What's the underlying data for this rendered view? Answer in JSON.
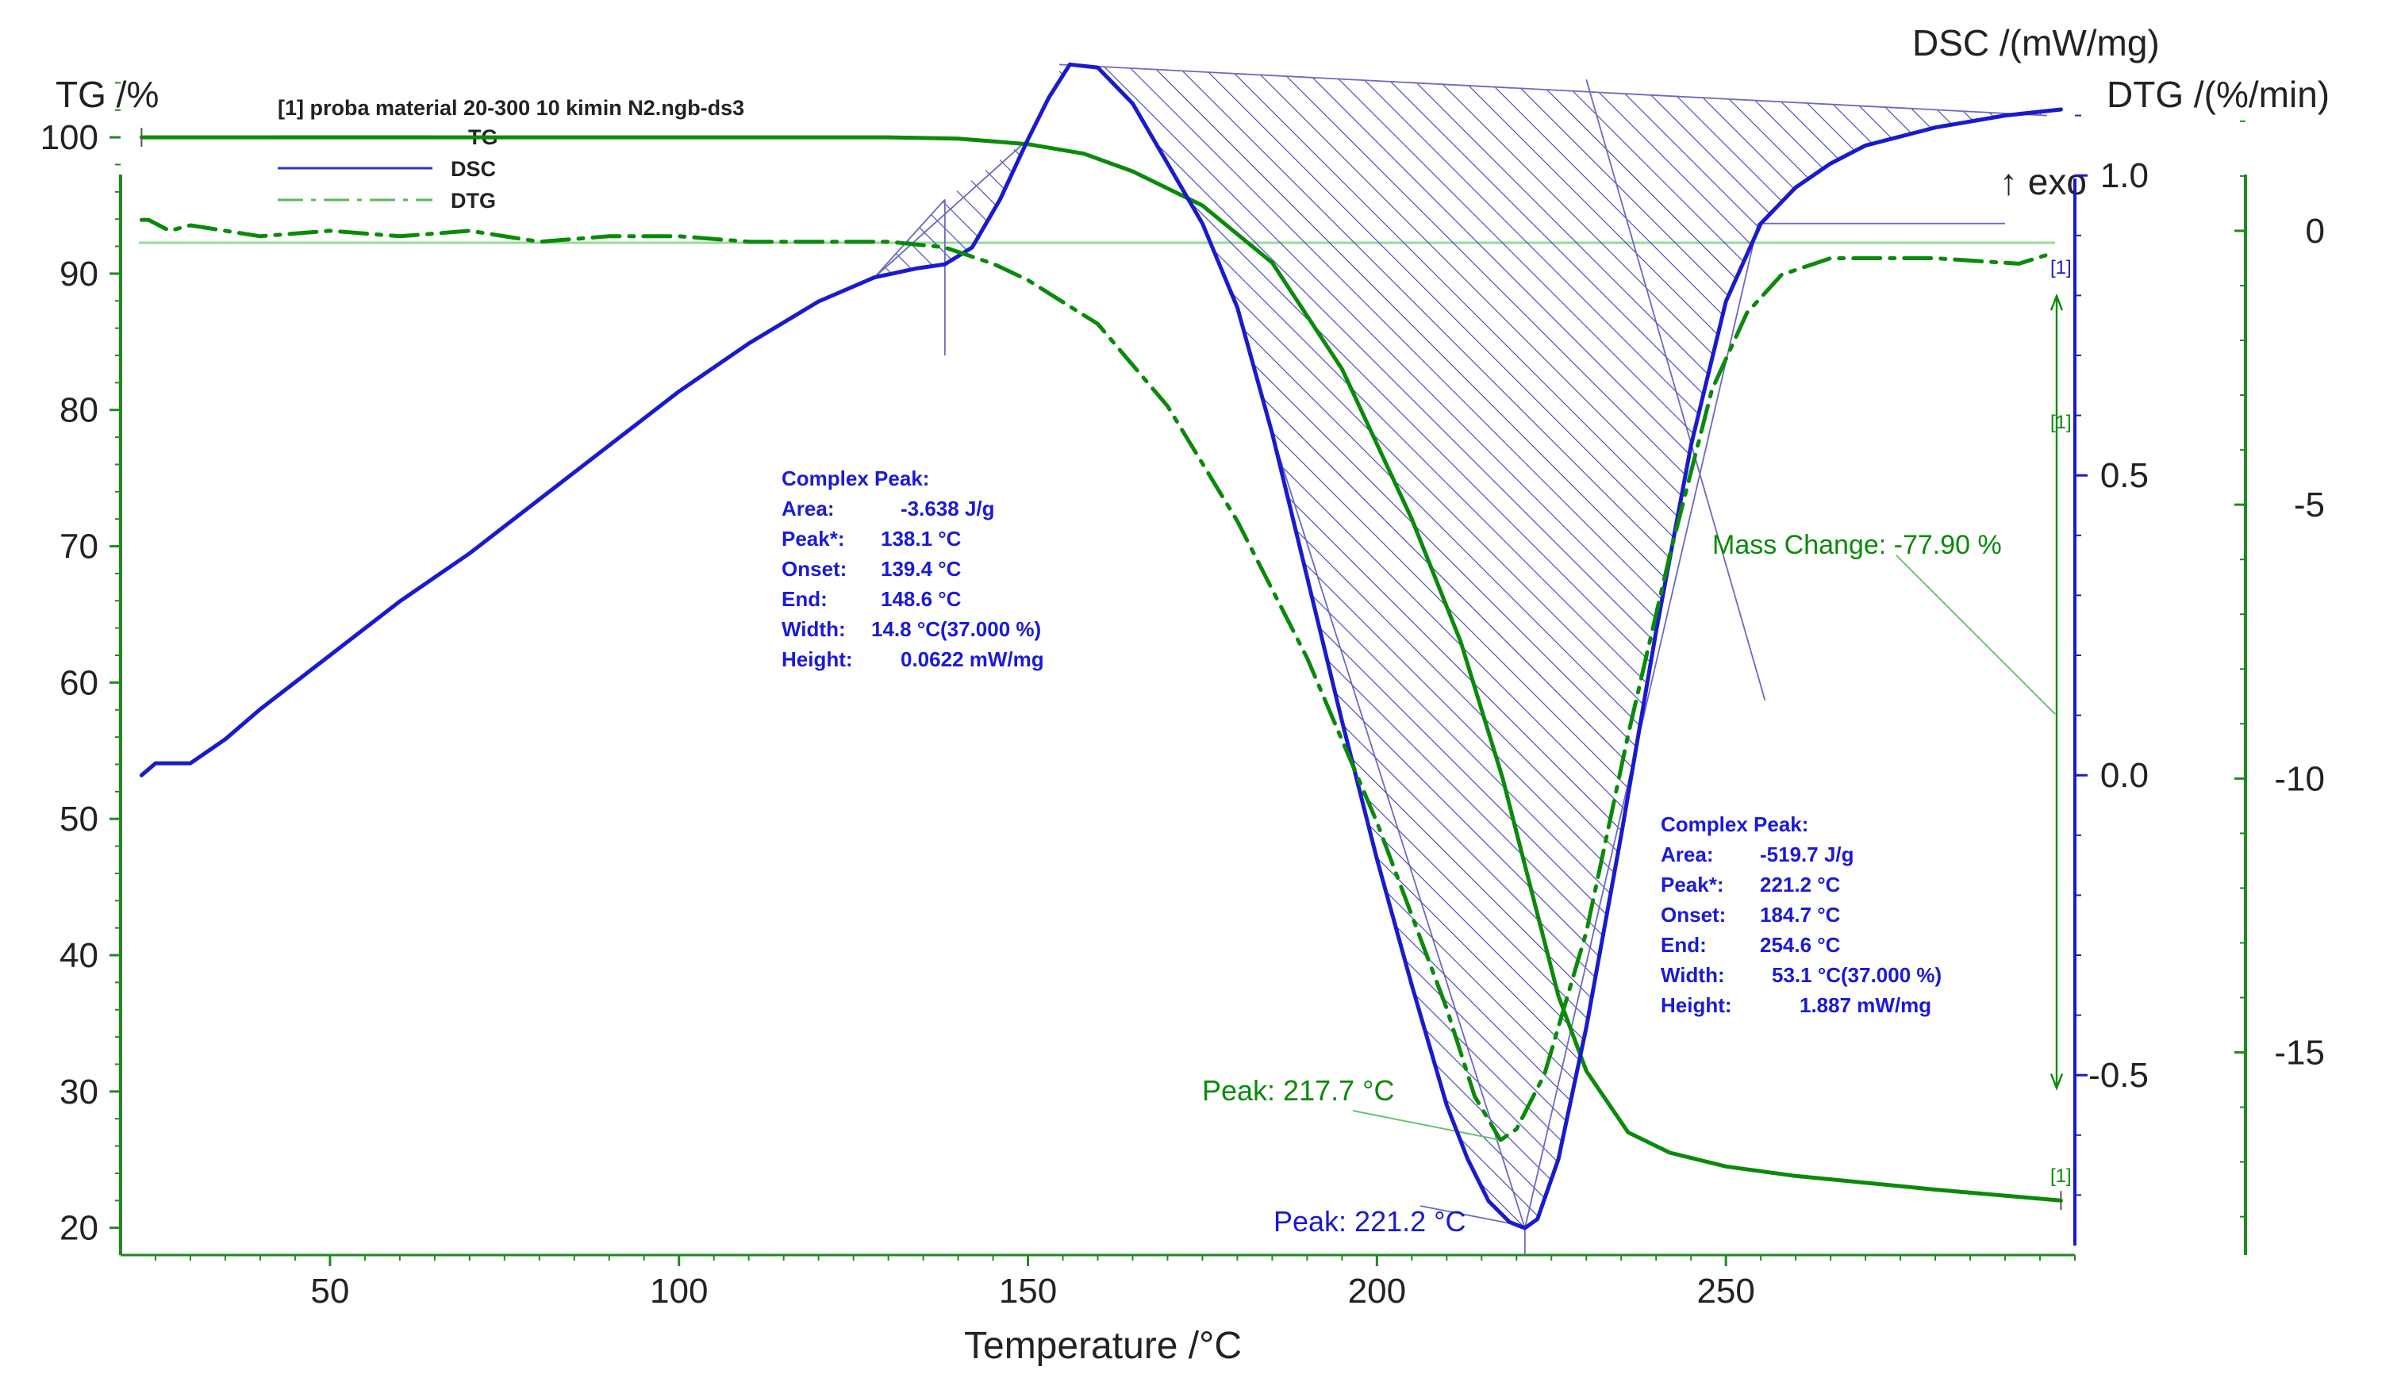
{
  "chart_data": {
    "type": "line",
    "source_file": "[1] proba material 20-300 10 kimin N2.ngb-ds3",
    "xlabel": "Temperature /°C",
    "xlim": [
      20,
      300
    ],
    "x_ticks": [
      "50",
      "100",
      "150",
      "200",
      "250"
    ],
    "axes": {
      "tg": {
        "label": "TG /%",
        "ylim": [
          18,
          106
        ],
        "ticks": [
          "20",
          "30",
          "40",
          "50",
          "60",
          "70",
          "80",
          "90",
          "100"
        ],
        "color": "#008000"
      },
      "dsc": {
        "label": "DSC /(mW/mg)",
        "exo_label": "↑ exo",
        "ylim": [
          -0.8,
          1.2
        ],
        "ticks": [
          "1.0",
          "0.5",
          "0.0",
          "-0.5"
        ],
        "color": "#1a1acd"
      },
      "dtg": {
        "label": "DTG /(%/min)",
        "ylim": [
          -18.7,
          3.2
        ],
        "ticks": [
          "0",
          "-5",
          "-10",
          "-15"
        ],
        "color": "#008000"
      }
    },
    "legend": [
      {
        "name": "TG",
        "style": "solid",
        "color": "#5cb85c"
      },
      {
        "name": "DSC",
        "style": "solid",
        "color": "#3333cc"
      },
      {
        "name": "DTG",
        "style": "dashdot",
        "color": "#5cb85c"
      }
    ],
    "series": [
      {
        "name": "TG",
        "axis": "tg",
        "color": "#0a8a0a",
        "x": [
          23,
          60,
          100,
          130,
          140,
          150,
          158,
          165,
          175,
          185,
          195,
          205,
          212,
          218,
          222,
          226,
          230,
          236,
          242,
          250,
          260,
          280,
          298
        ],
        "y": [
          100,
          100,
          100,
          100,
          99.9,
          99.5,
          98.8,
          97.5,
          95,
          90.8,
          83,
          72,
          63,
          53,
          45,
          37,
          31.5,
          27,
          25.5,
          24.5,
          23.8,
          22.8,
          22.0
        ]
      },
      {
        "name": "DSC",
        "axis": "dsc",
        "color": "#1a1acd",
        "x": [
          23,
          25,
          30,
          35,
          40,
          50,
          60,
          70,
          80,
          90,
          100,
          110,
          120,
          128,
          134,
          138.1,
          142,
          146,
          150,
          153,
          156,
          160,
          165,
          170,
          175,
          180,
          185,
          190,
          195,
          200,
          205,
          210,
          213,
          216,
          219,
          221.2,
          223,
          226,
          230,
          235,
          240,
          245,
          250,
          255,
          260,
          265,
          270,
          280,
          290,
          298
        ],
        "y": [
          0.0,
          0.02,
          0.02,
          0.06,
          0.11,
          0.2,
          0.29,
          0.37,
          0.46,
          0.55,
          0.64,
          0.72,
          0.79,
          0.83,
          0.845,
          0.852,
          0.88,
          0.96,
          1.06,
          1.13,
          1.185,
          1.18,
          1.12,
          1.02,
          0.92,
          0.78,
          0.57,
          0.33,
          0.09,
          -0.14,
          -0.35,
          -0.55,
          -0.64,
          -0.71,
          -0.745,
          -0.755,
          -0.74,
          -0.64,
          -0.42,
          -0.1,
          0.24,
          0.55,
          0.79,
          0.92,
          0.98,
          1.02,
          1.05,
          1.08,
          1.1,
          1.11
        ]
      },
      {
        "name": "DTG",
        "axis": "dtg",
        "color": "#0a8a0a",
        "style": "dashdot",
        "x": [
          23,
          24,
          27,
          30,
          35,
          40,
          50,
          60,
          70,
          80,
          90,
          100,
          110,
          120,
          130,
          138,
          145,
          150,
          160,
          170,
          180,
          190,
          200,
          210,
          214,
          217.7,
          220,
          224,
          230,
          236,
          242,
          248,
          253,
          258,
          265,
          280,
          292,
          297
        ],
        "y": [
          0.2,
          0.2,
          0,
          0.1,
          0,
          -0.1,
          0,
          -0.1,
          0,
          -0.2,
          -0.1,
          -0.1,
          -0.2,
          -0.2,
          -0.2,
          -0.3,
          -0.6,
          -0.9,
          -1.7,
          -3.2,
          -5.3,
          -7.8,
          -10.8,
          -14.2,
          -15.8,
          -16.6,
          -16.4,
          -15.4,
          -12.8,
          -9.2,
          -5.9,
          -2.9,
          -1.5,
          -0.8,
          -0.5,
          -0.5,
          -0.6,
          -0.4
        ]
      }
    ],
    "annotations": {
      "peak1": {
        "title": "Complex Peak:",
        "rows": [
          {
            "label": "Area:",
            "value": "-3.638 J/g"
          },
          {
            "label": "Peak*:",
            "value": "138.1 °C"
          },
          {
            "label": "Onset:",
            "value": "139.4 °C"
          },
          {
            "label": "End:",
            "value": "148.6 °C"
          },
          {
            "label": "Width:",
            "value": "14.8 °C(37.000 %)"
          },
          {
            "label": "Height:",
            "value": "0.0622 mW/mg"
          }
        ]
      },
      "peak2": {
        "title": "Complex Peak:",
        "rows": [
          {
            "label": "Area:",
            "value": "-519.7 J/g"
          },
          {
            "label": "Peak*:",
            "value": "221.2 °C"
          },
          {
            "label": "Onset:",
            "value": "184.7 °C"
          },
          {
            "label": "End:",
            "value": "254.6 °C"
          },
          {
            "label": "Width:",
            "value": "53.1 °C(37.000 %)"
          },
          {
            "label": "Height:",
            "value": "1.887 mW/mg"
          }
        ]
      },
      "dtg_peak": {
        "text": "Peak: 217.7 °C",
        "x": 217.7
      },
      "dsc_peak": {
        "text": "Peak: 221.2 °C",
        "x": 221.2
      },
      "mass_change": {
        "text": "Mass Change: -77.90 %",
        "from": 100,
        "to": 22.1
      },
      "curve_marker": "[1]"
    }
  }
}
